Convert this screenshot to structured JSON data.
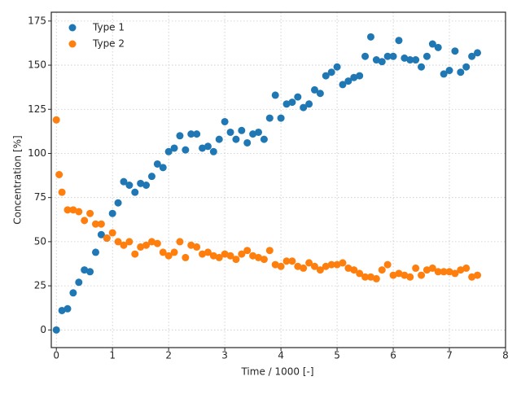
{
  "chart_data": {
    "type": "scatter",
    "xlabel": "Time / 1000 [-]",
    "ylabel": "Concentration [%]",
    "xlim": [
      -0.09,
      8
    ],
    "ylim": [
      -10,
      180
    ],
    "xticks": [
      0,
      1,
      2,
      3,
      4,
      5,
      6,
      7,
      8
    ],
    "yticks": [
      0,
      25,
      50,
      75,
      100,
      125,
      150,
      175
    ],
    "grid": true,
    "legend": "upper left",
    "series": [
      {
        "name": "Type 1",
        "color": "#1f77b4",
        "x": [
          0,
          0.1,
          0.2,
          0.3,
          0.4,
          0.5,
          0.6,
          0.7,
          0.8,
          0.9,
          1.0,
          1.1,
          1.2,
          1.3,
          1.4,
          1.5,
          1.6,
          1.7,
          1.8,
          1.9,
          2.0,
          2.1,
          2.2,
          2.3,
          2.4,
          2.5,
          2.6,
          2.7,
          2.8,
          2.9,
          3.0,
          3.1,
          3.2,
          3.3,
          3.4,
          3.5,
          3.6,
          3.7,
          3.8,
          3.9,
          4.0,
          4.1,
          4.2,
          4.3,
          4.4,
          4.5,
          4.6,
          4.7,
          4.8,
          4.9,
          5.0,
          5.1,
          5.2,
          5.3,
          5.4,
          5.5,
          5.6,
          5.7,
          5.8,
          5.9,
          6.0,
          6.1,
          6.2,
          6.3,
          6.4,
          6.5,
          6.6,
          6.7,
          6.8,
          6.9,
          7.0,
          7.1,
          7.2,
          7.3,
          7.4,
          7.5
        ],
        "values": [
          0,
          11,
          12,
          21,
          27,
          34,
          33,
          44,
          54,
          52,
          66,
          72,
          84,
          82,
          78,
          83,
          82,
          87,
          94,
          92,
          101,
          103,
          110,
          102,
          111,
          111,
          103,
          104,
          101,
          108,
          118,
          112,
          108,
          113,
          106,
          111,
          112,
          108,
          120,
          133,
          120,
          128,
          129,
          132,
          126,
          128,
          136,
          134,
          144,
          146,
          149,
          139,
          141,
          143,
          144,
          155,
          166,
          153,
          152,
          155,
          155,
          164,
          154,
          153,
          153,
          149,
          155,
          162,
          160,
          145,
          147,
          158,
          146,
          149,
          155,
          157
        ]
      },
      {
        "name": "Type 2",
        "color": "#ff7f0e",
        "x": [
          0,
          0.05,
          0.1,
          0.2,
          0.3,
          0.4,
          0.5,
          0.6,
          0.7,
          0.8,
          0.9,
          1.0,
          1.1,
          1.2,
          1.3,
          1.4,
          1.5,
          1.6,
          1.7,
          1.8,
          1.9,
          2.0,
          2.1,
          2.2,
          2.3,
          2.4,
          2.5,
          2.6,
          2.7,
          2.8,
          2.9,
          3.0,
          3.1,
          3.2,
          3.3,
          3.4,
          3.5,
          3.6,
          3.7,
          3.8,
          3.9,
          4.0,
          4.1,
          4.2,
          4.3,
          4.4,
          4.5,
          4.6,
          4.7,
          4.8,
          4.9,
          5.0,
          5.1,
          5.2,
          5.3,
          5.4,
          5.5,
          5.6,
          5.7,
          5.8,
          5.9,
          6.0,
          6.1,
          6.2,
          6.3,
          6.4,
          6.5,
          6.6,
          6.7,
          6.8,
          6.9,
          7.0,
          7.1,
          7.2,
          7.3,
          7.4,
          7.5
        ],
        "values": [
          119,
          88,
          78,
          68,
          68,
          67,
          62,
          66,
          60,
          60,
          52,
          55,
          50,
          48,
          50,
          43,
          47,
          48,
          50,
          49,
          44,
          42,
          44,
          50,
          41,
          48,
          47,
          43,
          44,
          42,
          41,
          43,
          42,
          40,
          43,
          45,
          42,
          41,
          40,
          45,
          37,
          36,
          39,
          39,
          36,
          35,
          38,
          36,
          34,
          36,
          37,
          37,
          38,
          35,
          34,
          32,
          30,
          30,
          29,
          34,
          37,
          31,
          32,
          31,
          30,
          35,
          31,
          34,
          35,
          33,
          33,
          33,
          32,
          34,
          35,
          30,
          31
        ]
      }
    ]
  }
}
